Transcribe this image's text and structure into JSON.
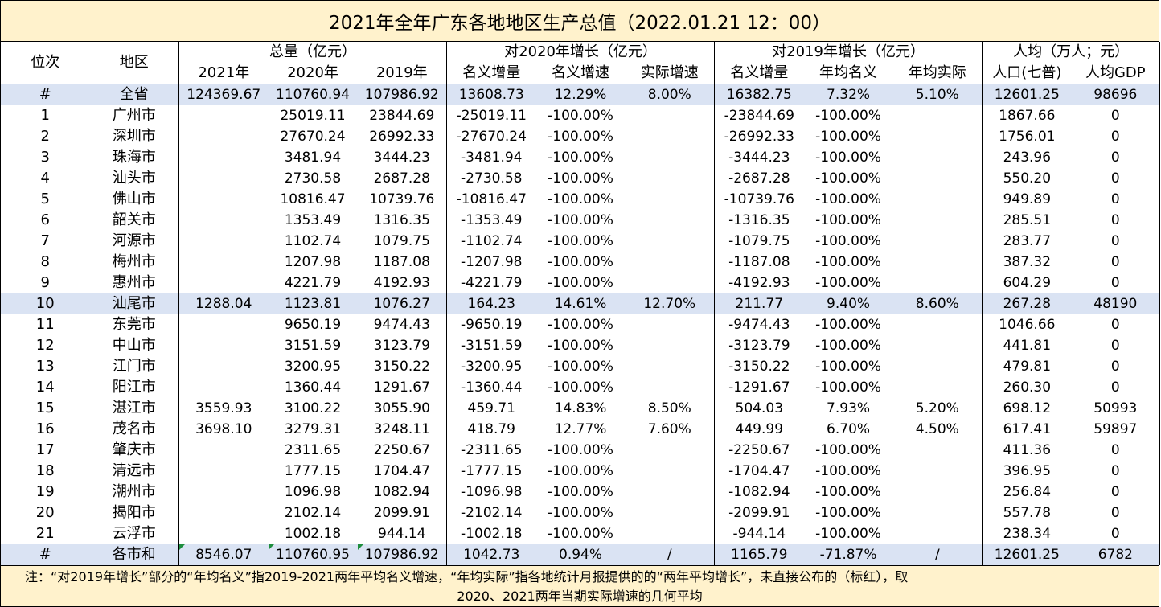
{
  "title": "2021年全年广东各地地区生产总值（2022.01.21 12：00）",
  "headers": {
    "rank": "位次",
    "region": "地区",
    "total_group": "总量（亿元）",
    "vs2020_group": "对2020年增长（亿元）",
    "vs2019_group": "对2019年增长（亿元）",
    "percap_group": "人均（万人；元）",
    "cols": [
      "2021年",
      "2020年",
      "2019年",
      "名义增量",
      "名义增速",
      "实际增速",
      "名义增量",
      "年均名义",
      "年均实际",
      "人口(七普)",
      "人均GDP"
    ]
  },
  "rows": [
    {
      "rank": "#",
      "region": "全省",
      "cells": [
        "124369.67",
        "110760.94",
        "107986.92",
        "13608.73",
        "12.29%",
        "8.00%",
        "16382.75",
        "7.32%",
        "5.10%",
        "12601.25",
        "98696"
      ]
    },
    {
      "rank": "1",
      "region": "广州市",
      "cells": [
        "",
        "25019.11",
        "23844.69",
        "-25019.11",
        "-100.00%",
        "",
        "-23844.69",
        "-100.00%",
        "",
        "1867.66",
        "0"
      ]
    },
    {
      "rank": "2",
      "region": "深圳市",
      "cells": [
        "",
        "27670.24",
        "26992.33",
        "-27670.24",
        "-100.00%",
        "",
        "-26992.33",
        "-100.00%",
        "",
        "1756.01",
        "0"
      ]
    },
    {
      "rank": "3",
      "region": "珠海市",
      "cells": [
        "",
        "3481.94",
        "3444.23",
        "-3481.94",
        "-100.00%",
        "",
        "-3444.23",
        "-100.00%",
        "",
        "243.96",
        "0"
      ]
    },
    {
      "rank": "4",
      "region": "汕头市",
      "cells": [
        "",
        "2730.58",
        "2687.28",
        "-2730.58",
        "-100.00%",
        "",
        "-2687.28",
        "-100.00%",
        "",
        "550.20",
        "0"
      ]
    },
    {
      "rank": "5",
      "region": "佛山市",
      "cells": [
        "",
        "10816.47",
        "10739.76",
        "-10816.47",
        "-100.00%",
        "",
        "-10739.76",
        "-100.00%",
        "",
        "949.89",
        "0"
      ]
    },
    {
      "rank": "6",
      "region": "韶关市",
      "cells": [
        "",
        "1353.49",
        "1316.35",
        "-1353.49",
        "-100.00%",
        "",
        "-1316.35",
        "-100.00%",
        "",
        "285.51",
        "0"
      ]
    },
    {
      "rank": "7",
      "region": "河源市",
      "cells": [
        "",
        "1102.74",
        "1079.75",
        "-1102.74",
        "-100.00%",
        "",
        "-1079.75",
        "-100.00%",
        "",
        "283.77",
        "0"
      ]
    },
    {
      "rank": "8",
      "region": "梅州市",
      "cells": [
        "",
        "1207.98",
        "1187.08",
        "-1207.98",
        "-100.00%",
        "",
        "-1187.08",
        "-100.00%",
        "",
        "387.32",
        "0"
      ]
    },
    {
      "rank": "9",
      "region": "惠州市",
      "cells": [
        "",
        "4221.79",
        "4192.93",
        "-4221.79",
        "-100.00%",
        "",
        "-4192.93",
        "-100.00%",
        "",
        "604.29",
        "0"
      ]
    },
    {
      "rank": "10",
      "region": "汕尾市",
      "cells": [
        "1288.04",
        "1123.81",
        "1076.27",
        "164.23",
        "14.61%",
        "12.70%",
        "211.77",
        "9.40%",
        "8.60%",
        "267.28",
        "48190"
      ]
    },
    {
      "rank": "11",
      "region": "东莞市",
      "cells": [
        "",
        "9650.19",
        "9474.43",
        "-9650.19",
        "-100.00%",
        "",
        "-9474.43",
        "-100.00%",
        "",
        "1046.66",
        "0"
      ]
    },
    {
      "rank": "12",
      "region": "中山市",
      "cells": [
        "",
        "3151.59",
        "3123.79",
        "-3151.59",
        "-100.00%",
        "",
        "-3123.79",
        "-100.00%",
        "",
        "441.81",
        "0"
      ]
    },
    {
      "rank": "13",
      "region": "江门市",
      "cells": [
        "",
        "3200.95",
        "3150.22",
        "-3200.95",
        "-100.00%",
        "",
        "-3150.22",
        "-100.00%",
        "",
        "479.81",
        "0"
      ]
    },
    {
      "rank": "14",
      "region": "阳江市",
      "cells": [
        "",
        "1360.44",
        "1291.67",
        "-1360.44",
        "-100.00%",
        "",
        "-1291.67",
        "-100.00%",
        "",
        "260.30",
        "0"
      ]
    },
    {
      "rank": "15",
      "region": "湛江市",
      "cells": [
        "3559.93",
        "3100.22",
        "3055.90",
        "459.71",
        "14.83%",
        "8.50%",
        "504.03",
        "7.93%",
        "5.20%",
        "698.12",
        "50993"
      ]
    },
    {
      "rank": "16",
      "region": "茂名市",
      "cells": [
        "3698.10",
        "3279.31",
        "3248.11",
        "418.79",
        "12.77%",
        "7.60%",
        "449.99",
        "6.70%",
        "4.50%",
        "617.41",
        "59897"
      ]
    },
    {
      "rank": "17",
      "region": "肇庆市",
      "cells": [
        "",
        "2311.65",
        "2250.67",
        "-2311.65",
        "-100.00%",
        "",
        "-2250.67",
        "-100.00%",
        "",
        "411.36",
        "0"
      ]
    },
    {
      "rank": "18",
      "region": "清远市",
      "cells": [
        "",
        "1777.15",
        "1704.47",
        "-1777.15",
        "-100.00%",
        "",
        "-1704.47",
        "-100.00%",
        "",
        "396.95",
        "0"
      ]
    },
    {
      "rank": "19",
      "region": "潮州市",
      "cells": [
        "",
        "1096.98",
        "1082.94",
        "-1096.98",
        "-100.00%",
        "",
        "-1082.94",
        "-100.00%",
        "",
        "256.84",
        "0"
      ]
    },
    {
      "rank": "20",
      "region": "揭阳市",
      "cells": [
        "",
        "2102.14",
        "2099.91",
        "-2102.14",
        "-100.00%",
        "",
        "-2099.91",
        "-100.00%",
        "",
        "557.78",
        "0"
      ]
    },
    {
      "rank": "21",
      "region": "云浮市",
      "cells": [
        "",
        "1002.18",
        "944.14",
        "-1002.18",
        "-100.00%",
        "",
        "-944.14",
        "-100.00%",
        "",
        "238.34",
        "0"
      ]
    },
    {
      "rank": "#",
      "region": "各市和",
      "cells": [
        "8546.07",
        "110760.95",
        "107986.92",
        "1042.73",
        "0.94%",
        "/",
        "1165.79",
        "-71.87%",
        "/",
        "12601.25",
        "6782"
      ]
    }
  ],
  "banded_rows": [
    0,
    10,
    22
  ],
  "flagged_cells": [
    [
      22,
      0
    ],
    [
      22,
      1
    ],
    [
      22,
      2
    ]
  ],
  "note": {
    "line1": "注：“对2019年增长”部分的“年均名义”指2019-2021两年平均名义增速，“年均实际”指各地统计月报提供的的“两年平均增长”，未直接公布的（标红），取",
    "line2": "2020、2021两年当期实际增速的几何平均"
  },
  "colors": {
    "title_bg": "#fff2cc",
    "band_bg": "#dae3f3",
    "flag": "#1e8e3e"
  }
}
